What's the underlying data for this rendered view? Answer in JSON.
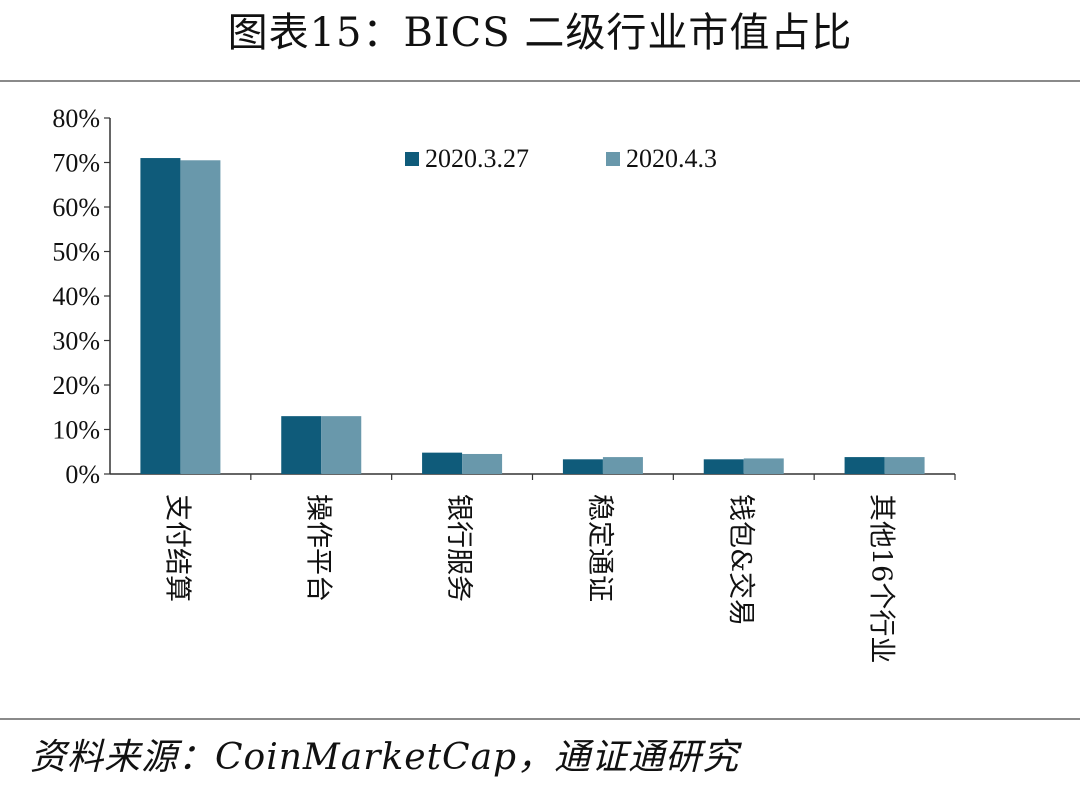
{
  "title": "图表15：BICS 二级行业市值占比",
  "source": "资料来源：CoinMarketCap，通证通研究",
  "chart_data": {
    "type": "bar",
    "categories": [
      "支付结算",
      "操作平台",
      "银行服务",
      "稳定通证",
      "钱包&交易",
      "其他16个行业"
    ],
    "series": [
      {
        "name": "2020.3.27",
        "values": [
          71,
          13,
          4.8,
          3.3,
          3.3,
          3.8
        ],
        "color": "#0f5b7a"
      },
      {
        "name": "2020.4.3",
        "values": [
          70.5,
          13,
          4.5,
          3.8,
          3.5,
          3.8
        ],
        "color": "#6998ab"
      }
    ],
    "ylim": [
      0,
      80
    ],
    "yticks": [
      "0%",
      "10%",
      "20%",
      "30%",
      "40%",
      "50%",
      "60%",
      "70%",
      "80%"
    ],
    "legend_position": "top",
    "grid": false
  }
}
